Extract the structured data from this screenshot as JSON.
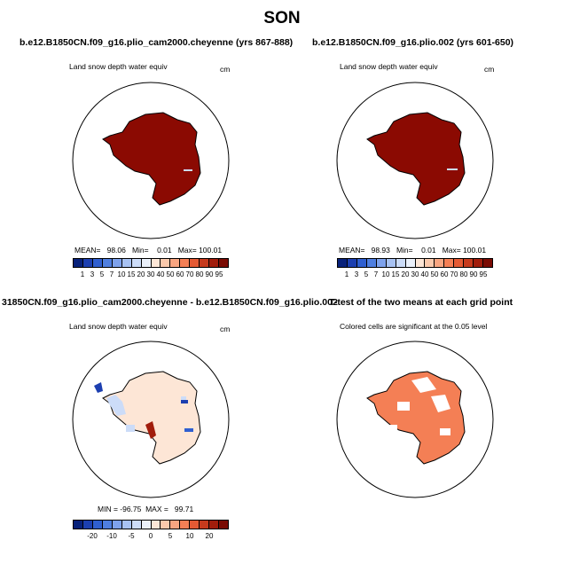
{
  "title": "SON",
  "panels": [
    {
      "title": "b.e12.B1850CN.f09_g16.plio_cam2000.cheyenne (yrs 867-888)",
      "field_label": "Land snow depth water equiv",
      "units": "cm",
      "stats": "MEAN=   98.06   Min=    0.01   Max= 100.01"
    },
    {
      "title": "b.e12.B1850CN.f09_g16.plio.002 (yrs 601-650)",
      "field_label": "Land snow depth water equiv",
      "units": "cm",
      "stats": "MEAN=   98.93   Min=    0.01   Max= 100.01"
    },
    {
      "title": "31850CN.f09_g16.plio_cam2000.cheyenne - b.e12.B1850CN.f09_g16.plio.002",
      "field_label": "Land snow depth water equiv",
      "units": "cm",
      "stats": "MIN = -96.75  MAX =   99.71"
    },
    {
      "title": "T-test of the two means at each grid point",
      "field_label": "Colored cells are significant at the 0.05 level",
      "units": "",
      "stats": ""
    }
  ],
  "colorbar_abs": {
    "colors": [
      "#08217a",
      "#1c3fb0",
      "#2f5fd0",
      "#4f7fe0",
      "#7ea2ec",
      "#a8c2f2",
      "#ccdcf8",
      "#ebf1fb",
      "#fde6d6",
      "#fbc9ac",
      "#f8a581",
      "#f47f55",
      "#e45a34",
      "#c63a1d",
      "#a11d0c",
      "#7a0b03"
    ],
    "ticks": [
      "1",
      "3",
      "5",
      "7",
      "10",
      "15",
      "20",
      "30",
      "40",
      "50",
      "60",
      "70",
      "80",
      "90",
      "95"
    ]
  },
  "colorbar_diff": {
    "colors": [
      "#08217a",
      "#1c3fb0",
      "#2f5fd0",
      "#4f7fe0",
      "#7ea2ec",
      "#a8c2f2",
      "#ccdcf8",
      "#ebf1fb",
      "#fde6d6",
      "#fbc9ac",
      "#f8a581",
      "#f47f55",
      "#e45a34",
      "#c63a1d",
      "#a11d0c",
      "#7a0b03"
    ],
    "ticks": [
      "-20",
      "-10",
      "-5",
      "0",
      "5",
      "10",
      "20"
    ]
  },
  "fill_colors": {
    "snow_full": "#8b0a02",
    "diff_fill": "#fde6d6",
    "diff_neg": "#ccdcf8",
    "significant": "#f47f55"
  }
}
